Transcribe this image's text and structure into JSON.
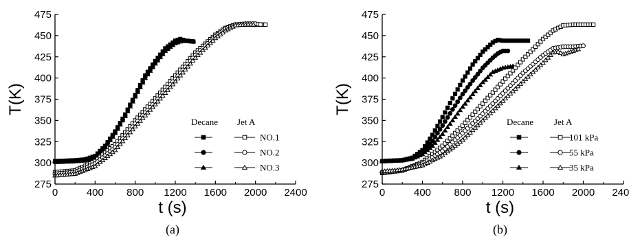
{
  "chart_data": [
    {
      "type": "scatter",
      "panel_label": "(a)",
      "xlabel": "t (s)",
      "ylabel": "T(K)",
      "xlim": [
        0,
        2400
      ],
      "ylim": [
        275,
        475
      ],
      "xticks": [
        0,
        400,
        800,
        1200,
        1600,
        2000,
        2400
      ],
      "yticks": [
        275,
        300,
        325,
        350,
        375,
        400,
        425,
        450,
        475
      ],
      "legend": {
        "placement": "right",
        "header_left": "Decane",
        "header_right": "Jet A",
        "labels": [
          "NO.1",
          "NO.2",
          "NO.3"
        ]
      },
      "series": [
        {
          "name": "NO.1",
          "group": "Decane",
          "marker": "square",
          "filled": true,
          "x": [
            0,
            200,
            300,
            400,
            500,
            600,
            700,
            800,
            900,
            1000,
            1100,
            1200,
            1250,
            1300,
            1380
          ],
          "y": [
            302,
            303,
            304,
            308,
            320,
            337,
            357,
            380,
            403,
            420,
            435,
            444,
            446,
            444,
            443
          ]
        },
        {
          "name": "NO.2",
          "group": "Decane",
          "marker": "circle",
          "filled": true,
          "x": [
            0,
            200,
            300,
            400,
            500,
            600,
            700,
            800,
            900,
            1000,
            1100,
            1200,
            1250,
            1300,
            1380
          ],
          "y": [
            301,
            302,
            303,
            307,
            319,
            336,
            356,
            379,
            401,
            418,
            433,
            442,
            444,
            444,
            443
          ]
        },
        {
          "name": "NO.3",
          "group": "Decane",
          "marker": "triangle",
          "filled": true,
          "x": [
            0,
            200,
            300,
            400,
            500,
            600,
            700,
            800,
            900,
            1000,
            1100,
            1200,
            1250,
            1300,
            1380
          ],
          "y": [
            302,
            302,
            303,
            307,
            318,
            335,
            355,
            378,
            400,
            417,
            432,
            441,
            443,
            444,
            443
          ]
        },
        {
          "name": "NO.1",
          "group": "Jet A",
          "marker": "square",
          "filled": false,
          "x": [
            0,
            200,
            400,
            600,
            800,
            1000,
            1200,
            1400,
            1600,
            1700,
            1800,
            1900,
            2000,
            2100
          ],
          "y": [
            289,
            291,
            302,
            322,
            350,
            376,
            403,
            430,
            451,
            459,
            463,
            463,
            463,
            463
          ]
        },
        {
          "name": "NO.2",
          "group": "Jet A",
          "marker": "circle",
          "filled": false,
          "x": [
            0,
            200,
            400,
            600,
            800,
            1000,
            1200,
            1400,
            1600,
            1700,
            1800,
            1900,
            2000,
            2050
          ],
          "y": [
            287,
            289,
            299,
            318,
            346,
            372,
            399,
            427,
            449,
            458,
            463,
            464,
            464,
            463
          ]
        },
        {
          "name": "NO.3",
          "group": "Jet A",
          "marker": "triangle",
          "filled": false,
          "x": [
            0,
            200,
            400,
            600,
            800,
            1000,
            1200,
            1400,
            1600,
            1700,
            1800,
            1900,
            1980
          ],
          "y": [
            285,
            287,
            296,
            315,
            343,
            369,
            396,
            424,
            447,
            456,
            462,
            463,
            463
          ]
        }
      ]
    },
    {
      "type": "scatter",
      "panel_label": "(b)",
      "xlabel": "t (s)",
      "ylabel": "T(K)",
      "xlim": [
        0,
        2400
      ],
      "ylim": [
        275,
        475
      ],
      "xticks": [
        0,
        400,
        800,
        1200,
        1600,
        2000,
        2400
      ],
      "yticks": [
        275,
        300,
        325,
        350,
        375,
        400,
        425,
        450,
        475
      ],
      "legend": {
        "placement": "right",
        "header_left": "Decane",
        "header_right": "Jet A",
        "labels": [
          "101 kPa",
          "55 kPa",
          "35 kPa"
        ]
      },
      "series": [
        {
          "name": "101 kPa",
          "group": "Decane",
          "marker": "square",
          "filled": true,
          "x": [
            0,
            200,
            300,
            400,
            500,
            600,
            700,
            800,
            900,
            1000,
            1100,
            1150,
            1200,
            1300,
            1450
          ],
          "y": [
            302,
            303,
            306,
            315,
            333,
            354,
            376,
            397,
            416,
            431,
            442,
            445,
            444,
            444,
            444
          ]
        },
        {
          "name": "55 kPa",
          "group": "Decane",
          "marker": "circle",
          "filled": true,
          "x": [
            0,
            200,
            300,
            400,
            500,
            600,
            700,
            800,
            900,
            1000,
            1100,
            1150,
            1200,
            1250
          ],
          "y": [
            302,
            303,
            305,
            312,
            326,
            344,
            363,
            381,
            397,
            412,
            424,
            429,
            432,
            432
          ]
        },
        {
          "name": "35 kPa",
          "group": "Decane",
          "marker": "triangle",
          "filled": true,
          "x": [
            0,
            200,
            300,
            400,
            500,
            600,
            700,
            800,
            900,
            1000,
            1100,
            1200,
            1300
          ],
          "y": [
            302,
            303,
            305,
            310,
            320,
            334,
            350,
            366,
            381,
            395,
            407,
            412,
            414
          ]
        },
        {
          "name": "101 kPa",
          "group": "Jet A",
          "marker": "square",
          "filled": false,
          "x": [
            0,
            200,
            400,
            600,
            800,
            1000,
            1200,
            1400,
            1600,
            1700,
            1800,
            1900,
            2000,
            2100
          ],
          "y": [
            288,
            291,
            301,
            320,
            344,
            370,
            396,
            422,
            446,
            456,
            462,
            463,
            463,
            463
          ]
        },
        {
          "name": "55 kPa",
          "group": "Jet A",
          "marker": "circle",
          "filled": false,
          "x": [
            0,
            200,
            400,
            600,
            800,
            1000,
            1200,
            1400,
            1600,
            1700,
            1800,
            1900,
            2000
          ],
          "y": [
            289,
            291,
            299,
            314,
            335,
            358,
            382,
            406,
            427,
            435,
            437,
            437,
            438
          ]
        },
        {
          "name": "35 kPa",
          "group": "Jet A",
          "marker": "triangle",
          "filled": false,
          "x": [
            0,
            200,
            400,
            600,
            800,
            1000,
            1200,
            1400,
            1600,
            1700,
            1750,
            1800,
            1900,
            1950
          ],
          "y": [
            290,
            292,
            297,
            309,
            327,
            350,
            373,
            396,
            418,
            430,
            431,
            428,
            432,
            434
          ]
        }
      ]
    }
  ]
}
